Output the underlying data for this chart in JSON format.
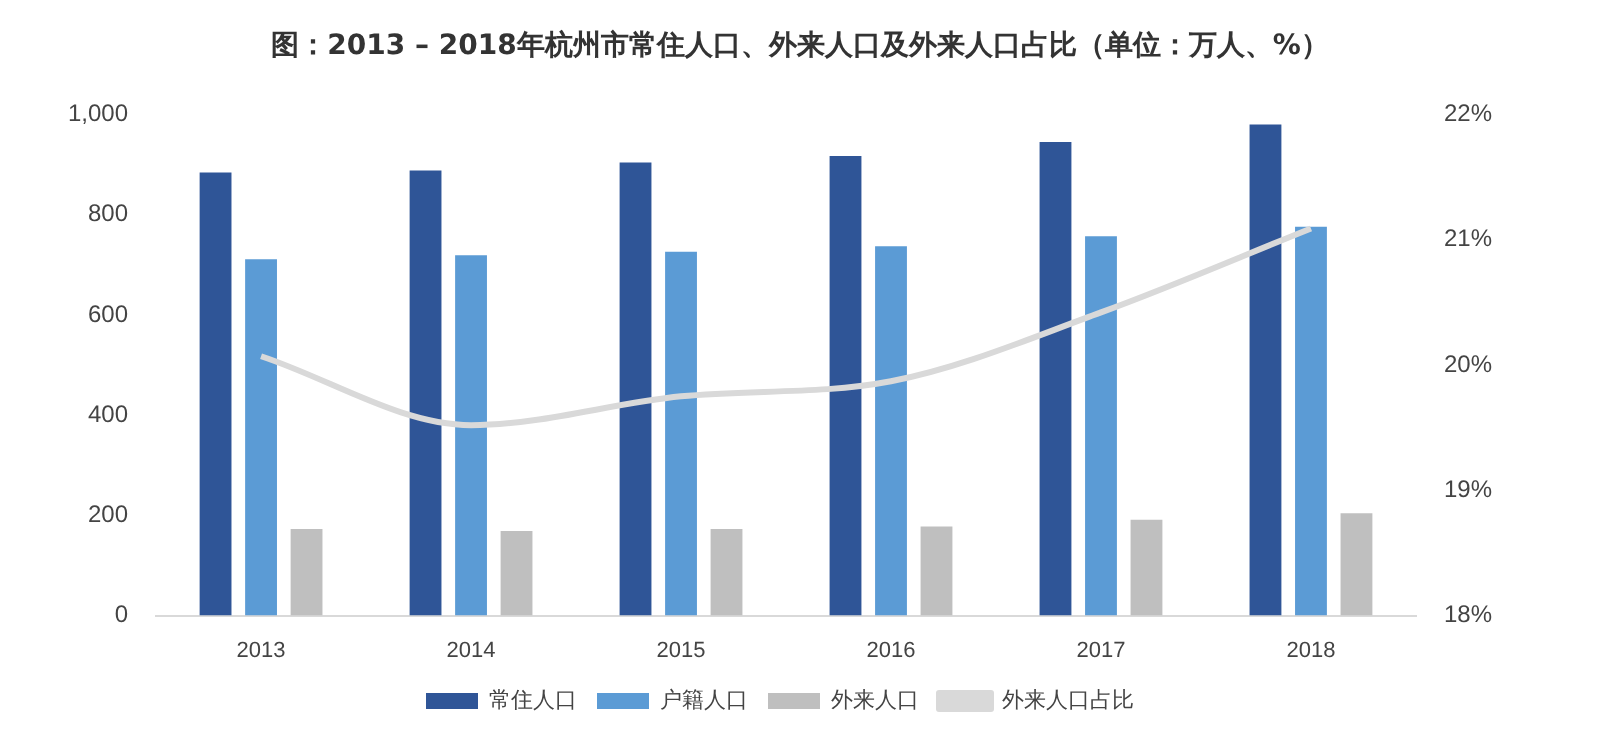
{
  "chart_data": {
    "type": "bar",
    "title": "图：2013 – 2018年杭州市常住人口、外来人口及外来人口占比（单位：万人、%）",
    "categories": [
      "2013",
      "2014",
      "2015",
      "2016",
      "2017",
      "2018"
    ],
    "series": [
      {
        "name": "常住人口",
        "color": "#2f5597",
        "values": [
          884,
          888,
          904,
          917,
          945,
          980
        ]
      },
      {
        "name": "户籍人口",
        "color": "#5b9bd5",
        "values": [
          711,
          719,
          726,
          737,
          757,
          776
        ]
      },
      {
        "name": "外来人口",
        "color": "#bfbfbf",
        "values": [
          173,
          169,
          173,
          178,
          191,
          204
        ]
      },
      {
        "name": "外来人口占比",
        "type": "line",
        "axis": "y2",
        "color": "#d9d9d9",
        "values": [
          20.07,
          19.52,
          19.75,
          19.87,
          20.42,
          21.09
        ]
      }
    ],
    "ylim": [
      0,
      1000
    ],
    "yticks": [
      0,
      200,
      400,
      600,
      800,
      {
        "value": 1000,
        "label": "1,000"
      }
    ],
    "y2lim": [
      18,
      22
    ],
    "y2ticks": [
      {
        "value": 18,
        "label": "18%"
      },
      {
        "value": 19,
        "label": "19%"
      },
      {
        "value": 20,
        "label": "20%"
      },
      {
        "value": 21,
        "label": "21%"
      },
      {
        "value": 22,
        "label": "22%"
      }
    ],
    "grid": false,
    "legend": "bottom",
    "marker": "none"
  }
}
